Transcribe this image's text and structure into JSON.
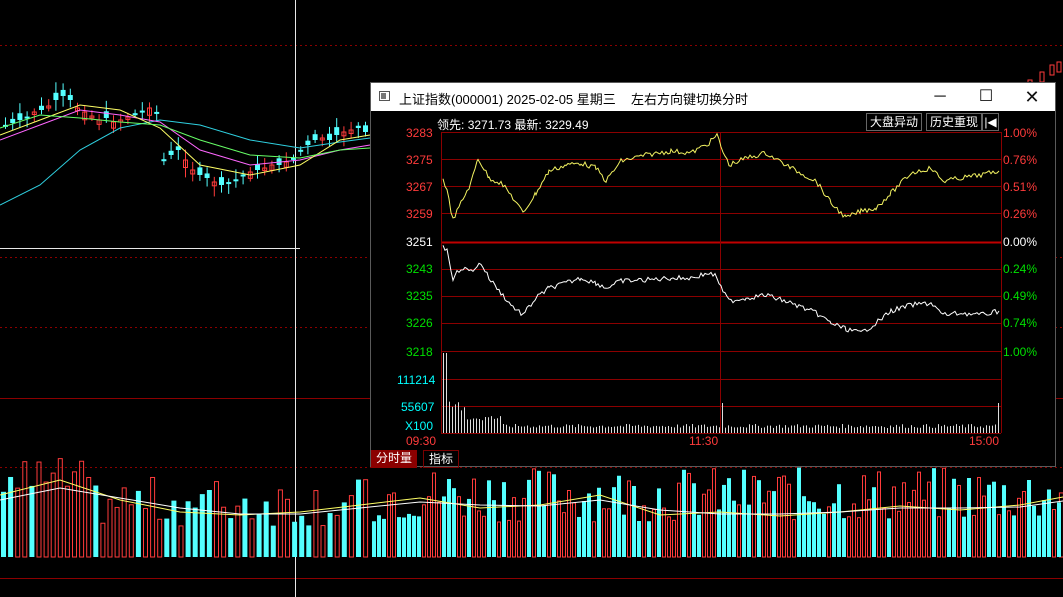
{
  "popup": {
    "title": "上证指数(000001) 2025-02-05 星期三",
    "hint": "左右方向键切换分时",
    "window_buttons": {
      "minimize": "─",
      "maximize": "☐",
      "close": "✕"
    },
    "lead_label": "领先:",
    "lead_value": "3271.73",
    "latest_label": "最新:",
    "latest_value": "3229.49",
    "btn_dapan": "大盘异动",
    "btn_lishi": "历史重现",
    "btn_back": "|◀",
    "price_ticks": [
      "3283",
      "3275",
      "3267",
      "3259",
      "3251",
      "3243",
      "3235",
      "3226",
      "3218"
    ],
    "pct_ticks": [
      "1.00%",
      "0.76%",
      "0.51%",
      "0.26%",
      "0.00%",
      "0.24%",
      "0.49%",
      "0.74%",
      "1.00%"
    ],
    "vol_ticks": [
      "111214",
      "55607",
      "X100"
    ],
    "time_ticks": [
      "09:30",
      "11:30",
      "15:00"
    ],
    "tabs": {
      "fenshi": "分时量",
      "zhibiao": "指标"
    }
  },
  "colors": {
    "up": "#ff3b3b",
    "down": "#54ffff",
    "grid": "#8b0000",
    "price_line": "#ffffff",
    "avg_line": "#ffff66",
    "cyan_label": "#00ffff",
    "green_label": "#00e000"
  }
}
